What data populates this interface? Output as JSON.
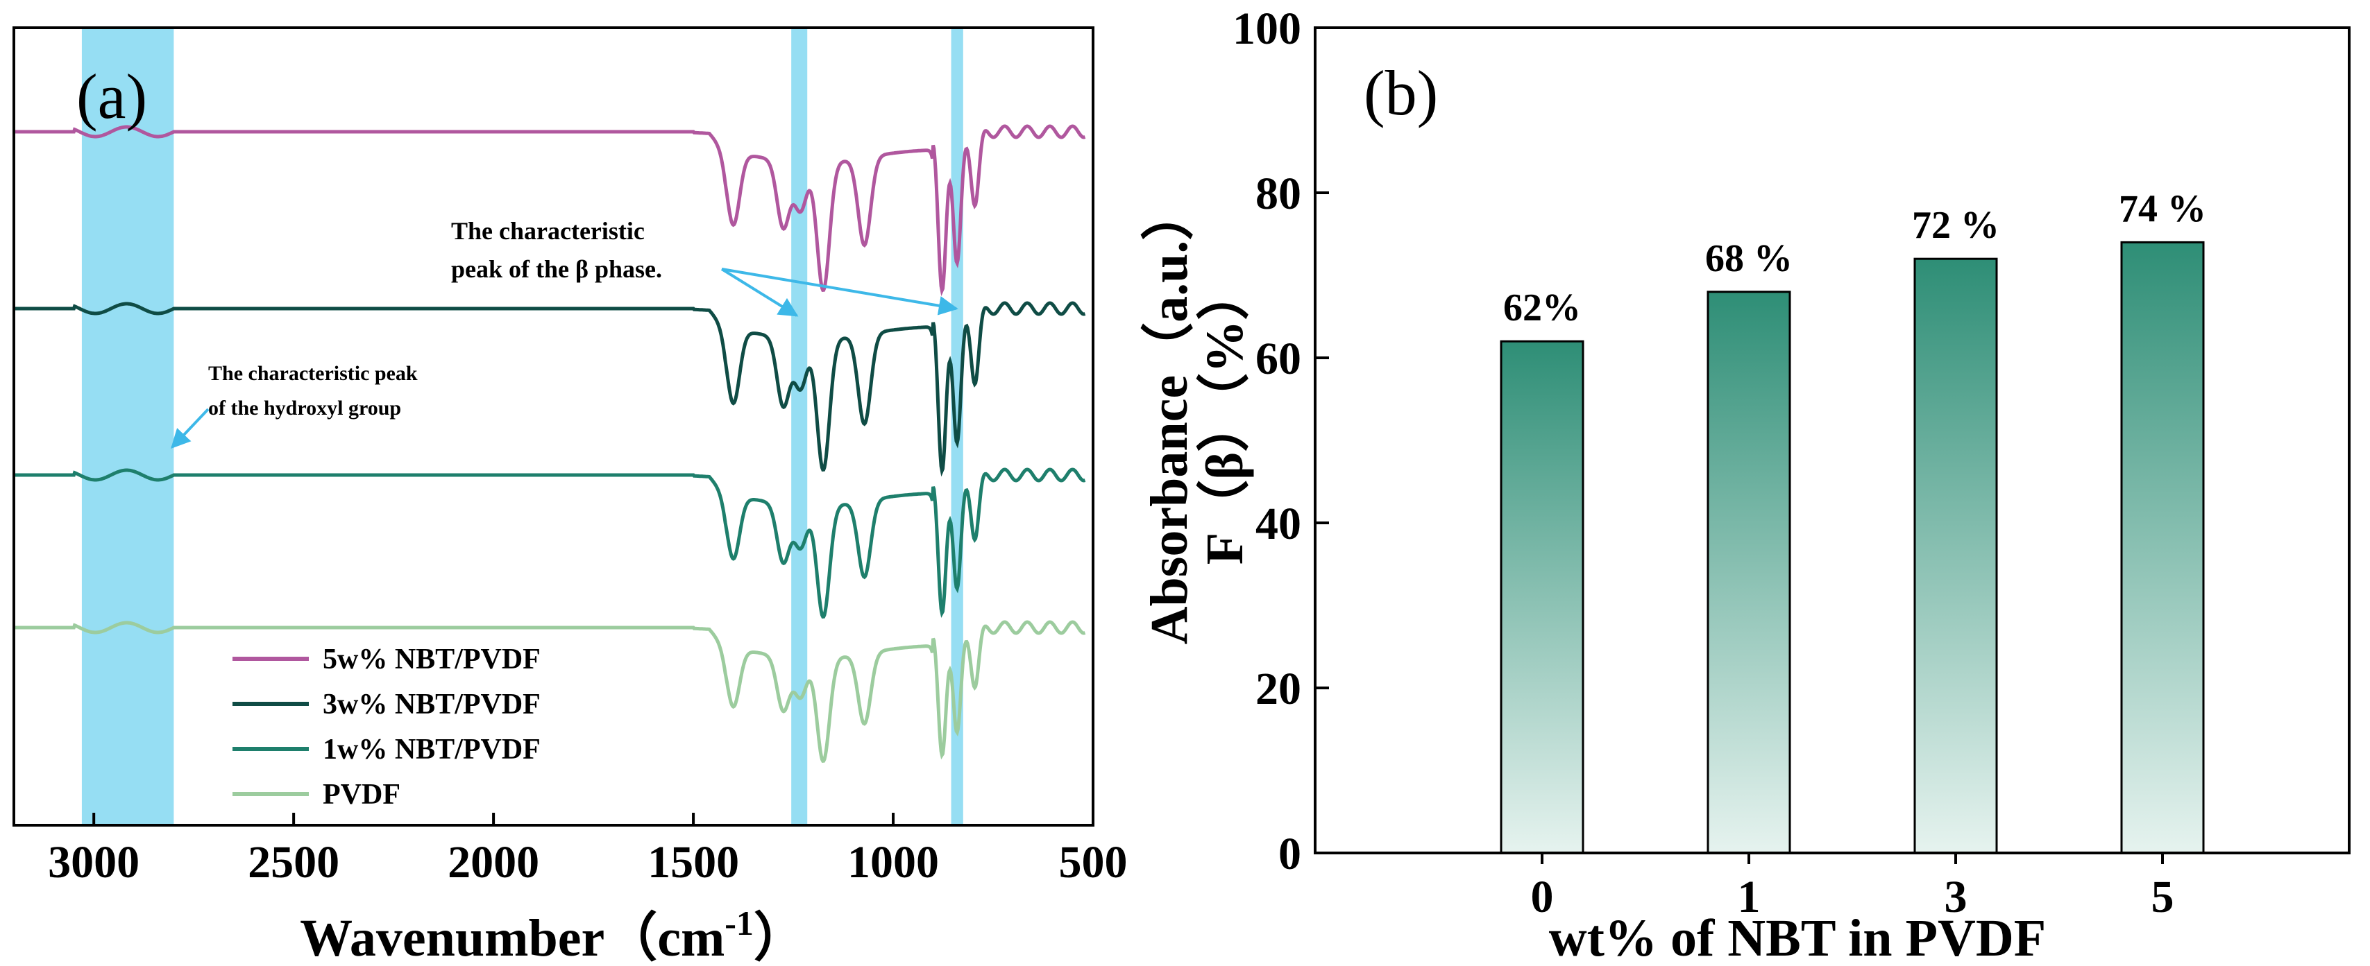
{
  "colors": {
    "pvdf5": "#B0579E",
    "pvdf3": "#0F4C45",
    "pvdf1": "#1E7F6C",
    "pvdf0": "#9CCC9E",
    "highlight": "#96DEF3",
    "arrow": "#3DB8E8",
    "bar_top": "#2E8E76",
    "bar_bottom": "#E6F3EF"
  },
  "chart_data": [
    {
      "type": "line",
      "panel_label": "(a)",
      "xlabel": "Wavenumber（cm",
      "xlabel_sup": "-1",
      "xlabel_close": "）",
      "ylabel": "Absorbance（a.u.）",
      "xlim": [
        3200,
        500
      ],
      "x_reversed": true,
      "xticks": [
        3000,
        2500,
        2000,
        1500,
        1000,
        500
      ],
      "yticks": [],
      "highlight_bands": [
        [
          3030,
          2800
        ],
        [
          1255,
          1215
        ],
        [
          855,
          825
        ]
      ],
      "annotations": {
        "beta_line1": "The characteristic",
        "beta_line2": "peak of the β phase.",
        "hydroxyl_line1": "The characteristic peak",
        "hydroxyl_line2": "of the hydroxyl group"
      },
      "legend_placement": "bottom-left",
      "series": [
        {
          "name": "5w% NBT/PVDF",
          "color_key": "pvdf5",
          "baseline": 0
        },
        {
          "name": "3w% NBT/PVDF",
          "color_key": "pvdf3",
          "baseline": 0
        },
        {
          "name": "1w% NBT/PVDF",
          "color_key": "pvdf1",
          "baseline": 0
        },
        {
          "name": "PVDF",
          "color_key": "pvdf0",
          "baseline": 0
        }
      ],
      "peaks": [
        {
          "x": 1400,
          "depth": 0.45
        },
        {
          "x": 1275,
          "depth": 0.42
        },
        {
          "x": 1232,
          "depth": 0.3
        },
        {
          "x": 1175,
          "depth": 0.8
        },
        {
          "x": 1072,
          "depth": 0.55
        },
        {
          "x": 878,
          "depth": 1.0
        },
        {
          "x": 840,
          "depth": 0.85
        },
        {
          "x": 795,
          "depth": 0.45
        }
      ]
    },
    {
      "type": "bar",
      "panel_label": "(b)",
      "categories": [
        "0",
        "1",
        "3",
        "5"
      ],
      "values": [
        62,
        68,
        72,
        74
      ],
      "data_labels": [
        "62%",
        "68 %",
        "72 %",
        "74 %"
      ],
      "xlabel": "wt% of NBT in PVDF",
      "ylabel": "F（β）（%）",
      "ylim": [
        0,
        100
      ],
      "yticks": [
        0,
        20,
        40,
        60,
        80,
        100
      ]
    }
  ]
}
